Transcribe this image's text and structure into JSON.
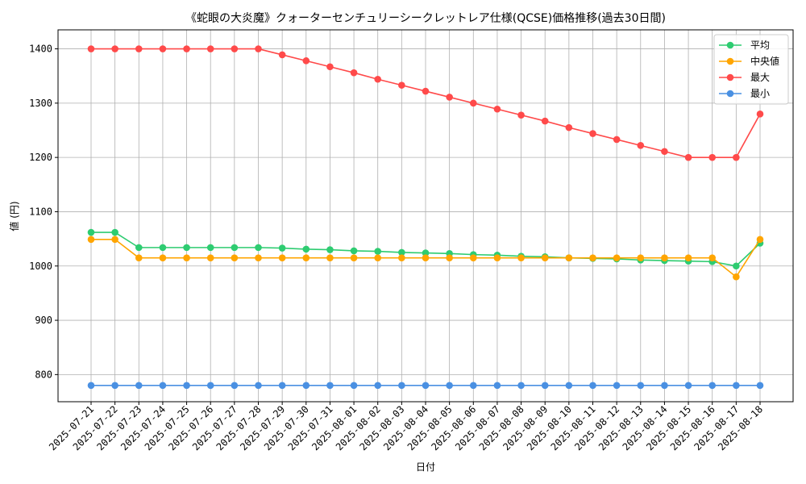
{
  "chart_data": {
    "type": "line",
    "title": "《蛇眼の大炎魔》クォーターセンチュリーシークレットレア仕様(QCSE)価格推移(過去30日間)",
    "xlabel": "日付",
    "ylabel": "値 (円)",
    "ylim": [
      750,
      1435
    ],
    "yticks": [
      800,
      900,
      1000,
      1100,
      1200,
      1300,
      1400
    ],
    "grid": true,
    "legend_position": "top-right",
    "categories": [
      "2025-07-21",
      "2025-07-22",
      "2025-07-23",
      "2025-07-24",
      "2025-07-25",
      "2025-07-26",
      "2025-07-27",
      "2025-07-28",
      "2025-07-29",
      "2025-07-30",
      "2025-07-31",
      "2025-08-01",
      "2025-08-02",
      "2025-08-03",
      "2025-08-04",
      "2025-08-05",
      "2025-08-06",
      "2025-08-07",
      "2025-08-08",
      "2025-08-09",
      "2025-08-10",
      "2025-08-11",
      "2025-08-12",
      "2025-08-13",
      "2025-08-14",
      "2025-08-15",
      "2025-08-16",
      "2025-08-17",
      "2025-08-18"
    ],
    "series": [
      {
        "name": "平均",
        "color": "#2ecc71",
        "values": [
          1062,
          1062,
          1034,
          1034,
          1034,
          1034,
          1034,
          1034,
          1033,
          1031,
          1030,
          1028,
          1027,
          1025,
          1024,
          1023,
          1021,
          1020,
          1018,
          1017,
          1015,
          1014,
          1013,
          1011,
          1010,
          1009,
          1008,
          1000,
          1042
        ]
      },
      {
        "name": "中央値",
        "color": "#ffa500",
        "values": [
          1049,
          1049,
          1015,
          1015,
          1015,
          1015,
          1015,
          1015,
          1015,
          1015,
          1015,
          1015,
          1015,
          1015,
          1015,
          1015,
          1015,
          1015,
          1015,
          1015,
          1015,
          1015,
          1015,
          1015,
          1015,
          1015,
          1015,
          980,
          1049
        ]
      },
      {
        "name": "最大",
        "color": "#ff4a4a",
        "values": [
          1400,
          1400,
          1400,
          1400,
          1400,
          1400,
          1400,
          1400,
          1389,
          1378,
          1367,
          1356,
          1344,
          1333,
          1322,
          1311,
          1300,
          1289,
          1278,
          1267,
          1255,
          1244,
          1233,
          1222,
          1211,
          1200,
          1200,
          1200,
          1280
        ]
      },
      {
        "name": "最小",
        "color": "#4a90e2",
        "values": [
          780,
          780,
          780,
          780,
          780,
          780,
          780,
          780,
          780,
          780,
          780,
          780,
          780,
          780,
          780,
          780,
          780,
          780,
          780,
          780,
          780,
          780,
          780,
          780,
          780,
          780,
          780,
          780,
          780
        ]
      }
    ]
  }
}
